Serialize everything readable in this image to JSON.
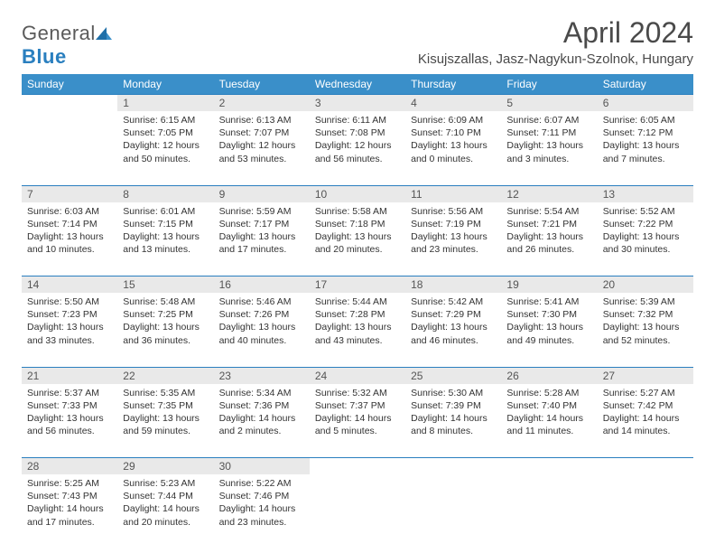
{
  "brand": {
    "part1": "General",
    "part2": "Blue"
  },
  "title": "April 2024",
  "location": "Kisujszallas, Jasz-Nagykun-Szolnok, Hungary",
  "colors": {
    "header_bg": "#3a8fc9",
    "header_text": "#ffffff",
    "daynum_bg": "#e9e9e9",
    "divider": "#2a7fbf",
    "text": "#333333",
    "title_text": "#4a4a4a"
  },
  "dayHeaders": [
    "Sunday",
    "Monday",
    "Tuesday",
    "Wednesday",
    "Thursday",
    "Friday",
    "Saturday"
  ],
  "weeks": [
    {
      "nums": [
        "",
        "1",
        "2",
        "3",
        "4",
        "5",
        "6"
      ],
      "cells": [
        {
          "sunrise": "",
          "sunset": "",
          "daylight": ""
        },
        {
          "sunrise": "Sunrise: 6:15 AM",
          "sunset": "Sunset: 7:05 PM",
          "daylight": "Daylight: 12 hours and 50 minutes."
        },
        {
          "sunrise": "Sunrise: 6:13 AM",
          "sunset": "Sunset: 7:07 PM",
          "daylight": "Daylight: 12 hours and 53 minutes."
        },
        {
          "sunrise": "Sunrise: 6:11 AM",
          "sunset": "Sunset: 7:08 PM",
          "daylight": "Daylight: 12 hours and 56 minutes."
        },
        {
          "sunrise": "Sunrise: 6:09 AM",
          "sunset": "Sunset: 7:10 PM",
          "daylight": "Daylight: 13 hours and 0 minutes."
        },
        {
          "sunrise": "Sunrise: 6:07 AM",
          "sunset": "Sunset: 7:11 PM",
          "daylight": "Daylight: 13 hours and 3 minutes."
        },
        {
          "sunrise": "Sunrise: 6:05 AM",
          "sunset": "Sunset: 7:12 PM",
          "daylight": "Daylight: 13 hours and 7 minutes."
        }
      ]
    },
    {
      "nums": [
        "7",
        "8",
        "9",
        "10",
        "11",
        "12",
        "13"
      ],
      "cells": [
        {
          "sunrise": "Sunrise: 6:03 AM",
          "sunset": "Sunset: 7:14 PM",
          "daylight": "Daylight: 13 hours and 10 minutes."
        },
        {
          "sunrise": "Sunrise: 6:01 AM",
          "sunset": "Sunset: 7:15 PM",
          "daylight": "Daylight: 13 hours and 13 minutes."
        },
        {
          "sunrise": "Sunrise: 5:59 AM",
          "sunset": "Sunset: 7:17 PM",
          "daylight": "Daylight: 13 hours and 17 minutes."
        },
        {
          "sunrise": "Sunrise: 5:58 AM",
          "sunset": "Sunset: 7:18 PM",
          "daylight": "Daylight: 13 hours and 20 minutes."
        },
        {
          "sunrise": "Sunrise: 5:56 AM",
          "sunset": "Sunset: 7:19 PM",
          "daylight": "Daylight: 13 hours and 23 minutes."
        },
        {
          "sunrise": "Sunrise: 5:54 AM",
          "sunset": "Sunset: 7:21 PM",
          "daylight": "Daylight: 13 hours and 26 minutes."
        },
        {
          "sunrise": "Sunrise: 5:52 AM",
          "sunset": "Sunset: 7:22 PM",
          "daylight": "Daylight: 13 hours and 30 minutes."
        }
      ]
    },
    {
      "nums": [
        "14",
        "15",
        "16",
        "17",
        "18",
        "19",
        "20"
      ],
      "cells": [
        {
          "sunrise": "Sunrise: 5:50 AM",
          "sunset": "Sunset: 7:23 PM",
          "daylight": "Daylight: 13 hours and 33 minutes."
        },
        {
          "sunrise": "Sunrise: 5:48 AM",
          "sunset": "Sunset: 7:25 PM",
          "daylight": "Daylight: 13 hours and 36 minutes."
        },
        {
          "sunrise": "Sunrise: 5:46 AM",
          "sunset": "Sunset: 7:26 PM",
          "daylight": "Daylight: 13 hours and 40 minutes."
        },
        {
          "sunrise": "Sunrise: 5:44 AM",
          "sunset": "Sunset: 7:28 PM",
          "daylight": "Daylight: 13 hours and 43 minutes."
        },
        {
          "sunrise": "Sunrise: 5:42 AM",
          "sunset": "Sunset: 7:29 PM",
          "daylight": "Daylight: 13 hours and 46 minutes."
        },
        {
          "sunrise": "Sunrise: 5:41 AM",
          "sunset": "Sunset: 7:30 PM",
          "daylight": "Daylight: 13 hours and 49 minutes."
        },
        {
          "sunrise": "Sunrise: 5:39 AM",
          "sunset": "Sunset: 7:32 PM",
          "daylight": "Daylight: 13 hours and 52 minutes."
        }
      ]
    },
    {
      "nums": [
        "21",
        "22",
        "23",
        "24",
        "25",
        "26",
        "27"
      ],
      "cells": [
        {
          "sunrise": "Sunrise: 5:37 AM",
          "sunset": "Sunset: 7:33 PM",
          "daylight": "Daylight: 13 hours and 56 minutes."
        },
        {
          "sunrise": "Sunrise: 5:35 AM",
          "sunset": "Sunset: 7:35 PM",
          "daylight": "Daylight: 13 hours and 59 minutes."
        },
        {
          "sunrise": "Sunrise: 5:34 AM",
          "sunset": "Sunset: 7:36 PM",
          "daylight": "Daylight: 14 hours and 2 minutes."
        },
        {
          "sunrise": "Sunrise: 5:32 AM",
          "sunset": "Sunset: 7:37 PM",
          "daylight": "Daylight: 14 hours and 5 minutes."
        },
        {
          "sunrise": "Sunrise: 5:30 AM",
          "sunset": "Sunset: 7:39 PM",
          "daylight": "Daylight: 14 hours and 8 minutes."
        },
        {
          "sunrise": "Sunrise: 5:28 AM",
          "sunset": "Sunset: 7:40 PM",
          "daylight": "Daylight: 14 hours and 11 minutes."
        },
        {
          "sunrise": "Sunrise: 5:27 AM",
          "sunset": "Sunset: 7:42 PM",
          "daylight": "Daylight: 14 hours and 14 minutes."
        }
      ]
    },
    {
      "nums": [
        "28",
        "29",
        "30",
        "",
        "",
        "",
        ""
      ],
      "cells": [
        {
          "sunrise": "Sunrise: 5:25 AM",
          "sunset": "Sunset: 7:43 PM",
          "daylight": "Daylight: 14 hours and 17 minutes."
        },
        {
          "sunrise": "Sunrise: 5:23 AM",
          "sunset": "Sunset: 7:44 PM",
          "daylight": "Daylight: 14 hours and 20 minutes."
        },
        {
          "sunrise": "Sunrise: 5:22 AM",
          "sunset": "Sunset: 7:46 PM",
          "daylight": "Daylight: 14 hours and 23 minutes."
        },
        {
          "sunrise": "",
          "sunset": "",
          "daylight": ""
        },
        {
          "sunrise": "",
          "sunset": "",
          "daylight": ""
        },
        {
          "sunrise": "",
          "sunset": "",
          "daylight": ""
        },
        {
          "sunrise": "",
          "sunset": "",
          "daylight": ""
        }
      ]
    }
  ]
}
